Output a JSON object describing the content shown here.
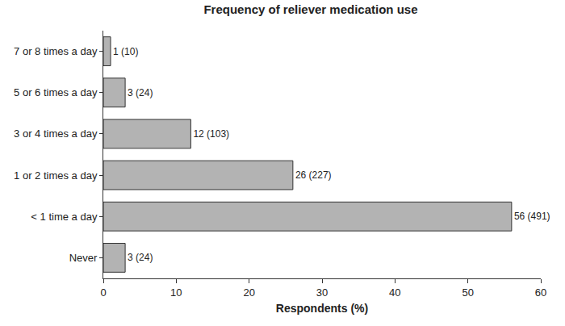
{
  "chart_data": {
    "type": "bar",
    "orientation": "horizontal",
    "title": "Frequency of reliever medication use",
    "x_label": "Respondents (%)",
    "categories": [
      "Never",
      "< 1 time a day",
      "1 or 2 times a day",
      "3 or 4 times a day",
      "5 or 6 times a day",
      "7 or 8 times a day"
    ],
    "values": [
      3,
      56,
      26,
      12,
      3,
      1
    ],
    "value_labels": [
      "3 (24)",
      "56 (491)",
      "26 (227)",
      "12 (103)",
      "3 (24)",
      "1 (10)"
    ],
    "data_labels": true,
    "color": "#b3b3b3",
    "xlim": [
      0,
      60
    ],
    "xticks": [
      0,
      10,
      20,
      30,
      40,
      50,
      60
    ],
    "grid": false
  }
}
